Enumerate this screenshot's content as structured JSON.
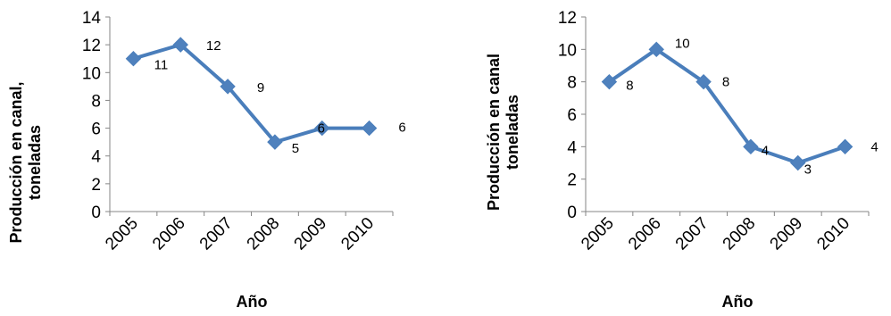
{
  "chart_data": [
    {
      "type": "line",
      "categories": [
        "2005",
        "2006",
        "2007",
        "2008",
        "2009",
        "2010"
      ],
      "series": [
        {
          "values": [
            11,
            12,
            9,
            5,
            6,
            6
          ]
        }
      ],
      "data_labels": [
        "11",
        "12",
        "9",
        "5",
        "6",
        "6"
      ],
      "xlabel": "Año",
      "ylabel_lines": [
        "Producción en canal,",
        "toneladas"
      ],
      "ylim": [
        0,
        14
      ],
      "yticks": [
        0,
        2,
        4,
        6,
        8,
        10,
        12,
        14
      ],
      "grid": false,
      "legend": "none",
      "color": "#4f81bd"
    },
    {
      "type": "line",
      "categories": [
        "2005",
        "2006",
        "2007",
        "2008",
        "2009",
        "2010"
      ],
      "series": [
        {
          "values": [
            8,
            10,
            8,
            4,
            3,
            4
          ]
        }
      ],
      "data_labels": [
        "8",
        "10",
        "8",
        "4",
        "3",
        "4"
      ],
      "xlabel": "Año",
      "ylabel_lines": [
        "Producción en canal",
        "toneladas"
      ],
      "ylim": [
        0,
        12
      ],
      "yticks": [
        0,
        2,
        4,
        6,
        8,
        10,
        12
      ],
      "grid": false,
      "legend": "none",
      "color": "#4f81bd"
    }
  ]
}
